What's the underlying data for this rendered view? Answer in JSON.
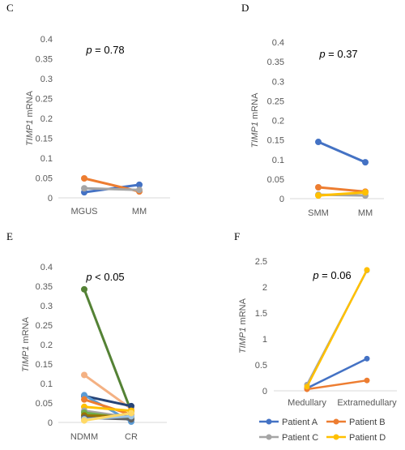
{
  "chart_data": [
    {
      "panel": "C",
      "type": "line",
      "ylabel_italic": "TIMP1",
      "ylabel_rest": " mRNA",
      "yticks": [
        "0",
        "0.05",
        "0.1",
        "0.15",
        "0.2",
        "0.25",
        "0.3",
        "0.35",
        "0.4"
      ],
      "ylim": [
        0,
        0.4
      ],
      "categories": [
        "MGUS",
        "MM"
      ],
      "p_label": "p",
      "p_text": " = 0.78",
      "series": [
        {
          "color": "#4472C4",
          "values": [
            0.014,
            0.033
          ]
        },
        {
          "color": "#ED7D31",
          "values": [
            0.049,
            0.016
          ]
        },
        {
          "color": "#A5A5A5",
          "values": [
            0.024,
            0.02
          ]
        }
      ]
    },
    {
      "panel": "D",
      "type": "line",
      "ylabel_italic": "TIMP1",
      "ylabel_rest": " mRNA",
      "yticks": [
        "0",
        "0.05",
        "0.1",
        "0.15",
        "0.2",
        "0.25",
        "0.3",
        "0.35",
        "0.4"
      ],
      "ylim": [
        0,
        0.4
      ],
      "categories": [
        "SMM",
        "MM"
      ],
      "p_label": "p",
      "p_text": " = 0.37",
      "series": [
        {
          "color": "#4472C4",
          "values": [
            0.145,
            0.093
          ]
        },
        {
          "color": "#ED7D31",
          "values": [
            0.029,
            0.018
          ]
        },
        {
          "color": "#A5A5A5",
          "values": [
            0.01,
            0.008
          ]
        },
        {
          "color": "#FFC000",
          "values": [
            0.008,
            0.016
          ]
        }
      ]
    },
    {
      "panel": "E",
      "type": "line",
      "ylabel_italic": "TIMP1",
      "ylabel_rest": " mRNA",
      "yticks": [
        "0",
        "0.05",
        "0.1",
        "0.15",
        "0.2",
        "0.25",
        "0.3",
        "0.35",
        "0.4"
      ],
      "ylim": [
        0,
        0.4
      ],
      "categories": [
        "NDMM",
        "CR"
      ],
      "p_label": "p",
      "p_text": " < 0.05",
      "series": [
        {
          "color": "#548235",
          "values": [
            0.342,
            0.028
          ]
        },
        {
          "color": "#F4B183",
          "values": [
            0.122,
            0.035
          ]
        },
        {
          "color": "#264478",
          "values": [
            0.068,
            0.042
          ]
        },
        {
          "color": "#5B9BD5",
          "values": [
            0.07,
            0.002
          ]
        },
        {
          "color": "#ED7D31",
          "values": [
            0.059,
            0.02
          ]
        },
        {
          "color": "#FFC000",
          "values": [
            0.04,
            0.03
          ]
        },
        {
          "color": "#A5A5A5",
          "values": [
            0.03,
            0.013
          ]
        },
        {
          "color": "#70AD47",
          "values": [
            0.025,
            0.01
          ]
        },
        {
          "color": "#997300",
          "values": [
            0.018,
            0.015
          ]
        },
        {
          "color": "#636363",
          "values": [
            0.012,
            0.008
          ]
        },
        {
          "color": "#9DC3E6",
          "values": [
            0.008,
            0.016
          ]
        },
        {
          "color": "#FFD966",
          "values": [
            0.005,
            0.024
          ]
        }
      ]
    },
    {
      "panel": "F",
      "type": "line",
      "ylabel_italic": "TIMP1",
      "ylabel_rest": " mRNA",
      "yticks": [
        "0",
        "0.5",
        "1",
        "1.5",
        "2",
        "2.5"
      ],
      "ylim": [
        0,
        2.5
      ],
      "categories": [
        "Medullary",
        "Extramedullary"
      ],
      "p_label": "p",
      "p_text": " = 0.06",
      "series": [
        {
          "name": "Patient A",
          "color": "#4472C4",
          "values": [
            0.05,
            0.62
          ]
        },
        {
          "name": "Patient B",
          "color": "#ED7D31",
          "values": [
            0.03,
            0.2
          ]
        },
        {
          "name": "Patient C",
          "color": "#A5A5A5",
          "values": [
            0.12,
            2.32
          ]
        },
        {
          "name": "Patient D",
          "color": "#FFC000",
          "values": [
            0.08,
            2.33
          ]
        }
      ]
    }
  ]
}
